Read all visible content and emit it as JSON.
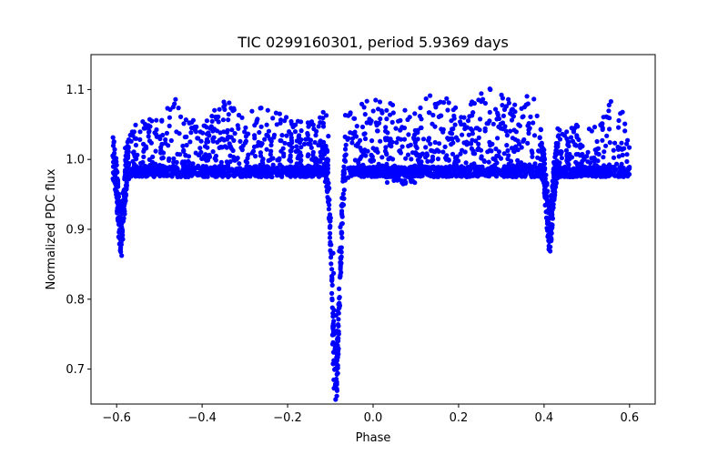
{
  "chart_data": {
    "type": "scatter",
    "title": "TIC 0299160301, period 5.9369 days",
    "xlabel": "Phase",
    "ylabel": "Normalized PDC flux",
    "xlim": [
      -0.66,
      0.66
    ],
    "ylim": [
      0.65,
      1.15
    ],
    "x_ticks": [
      -0.6,
      -0.4,
      -0.2,
      0.0,
      0.2,
      0.4,
      0.6
    ],
    "x_tick_labels": [
      "−0.6",
      "−0.4",
      "−0.2",
      "0.0",
      "0.2",
      "0.4",
      "0.6"
    ],
    "y_ticks": [
      0.7,
      0.8,
      0.9,
      1.0,
      1.1
    ],
    "y_tick_labels": [
      "0.7",
      "0.8",
      "0.9",
      "1.0",
      "1.1"
    ],
    "grid": false,
    "legend": false,
    "marker_color": "#0000ff",
    "series": [
      {
        "x_range": [
          -0.6,
          0.6
        ],
        "baseline_flux": 1.0,
        "envelope": [
          [
            -0.6,
            1.05
          ],
          [
            -0.55,
            1.06
          ],
          [
            -0.5,
            1.06
          ],
          [
            -0.46,
            1.09
          ],
          [
            -0.4,
            1.05
          ],
          [
            -0.35,
            1.09
          ],
          [
            -0.3,
            1.06
          ],
          [
            -0.27,
            1.08
          ],
          [
            -0.2,
            1.06
          ],
          [
            -0.15,
            1.06
          ],
          [
            -0.1,
            1.1
          ],
          [
            -0.05,
            1.07
          ],
          [
            0.0,
            1.09
          ],
          [
            0.05,
            1.08
          ],
          [
            0.1,
            1.07
          ],
          [
            0.14,
            1.11
          ],
          [
            0.2,
            1.07
          ],
          [
            0.28,
            1.11
          ],
          [
            0.33,
            1.08
          ],
          [
            0.38,
            1.12
          ],
          [
            0.4,
            1.05
          ],
          [
            0.45,
            1.05
          ],
          [
            0.53,
            1.05
          ],
          [
            0.56,
            1.09
          ],
          [
            0.6,
            1.06
          ]
        ],
        "eclipses": [
          {
            "center": -0.087,
            "depth_min": 0.675,
            "half_width": 0.015
          },
          {
            "center": -0.59,
            "depth_min": 0.89,
            "half_width": 0.012
          },
          {
            "center": 0.413,
            "depth_min": 0.89,
            "half_width": 0.012
          }
        ]
      }
    ]
  }
}
